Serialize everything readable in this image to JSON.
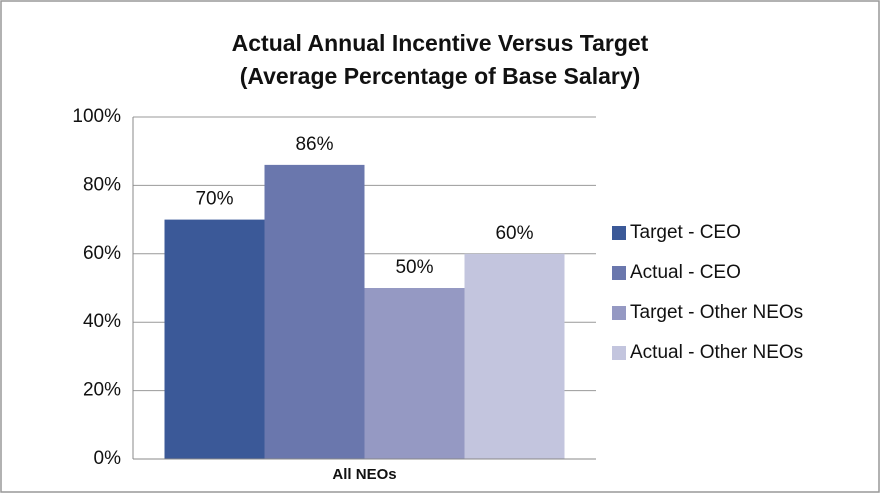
{
  "chart_data": {
    "type": "bar",
    "title": "Actual Annual Incentive Versus Target",
    "subtitle": "(Average Percentage of Base Salary)",
    "categories": [
      "All NEOs"
    ],
    "series": [
      {
        "name": "Target - CEO",
        "color": "#3b5998",
        "values": [
          70
        ],
        "value_labels": [
          "70%"
        ]
      },
      {
        "name": "Actual - CEO",
        "color": "#6a77ad",
        "values": [
          86
        ],
        "value_labels": [
          "86%"
        ]
      },
      {
        "name": "Target - Other NEOs",
        "color": "#9599c3",
        "values": [
          50
        ],
        "value_labels": [
          "50%"
        ]
      },
      {
        "name": "Actual - Other NEOs",
        "color": "#c3c5de",
        "values": [
          60
        ],
        "value_labels": [
          "60%"
        ]
      }
    ],
    "ylim": [
      0,
      100
    ],
    "yticks": [
      {
        "value": 0,
        "label": "0%"
      },
      {
        "value": 20,
        "label": "20%"
      },
      {
        "value": 40,
        "label": "40%"
      },
      {
        "value": 60,
        "label": "60%"
      },
      {
        "value": 80,
        "label": "80%"
      },
      {
        "value": 100,
        "label": "100%"
      }
    ],
    "grid": true,
    "legend": "right"
  }
}
